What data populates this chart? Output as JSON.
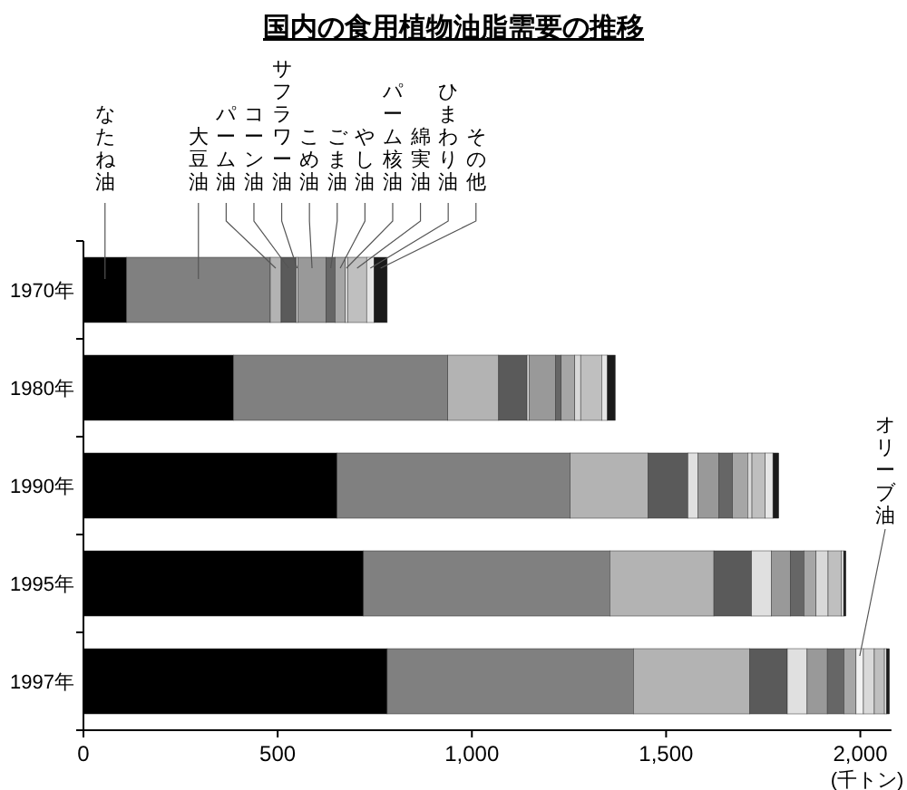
{
  "chart_data": {
    "type": "bar",
    "orientation": "horizontal",
    "stacked": true,
    "title": "国内の食用植物油脂需要の推移",
    "xlabel": "(千トン)",
    "categories": [
      "1970年",
      "1980年",
      "1990年",
      "1995年",
      "1997年"
    ],
    "xlim": [
      0,
      2080
    ],
    "xticks": [
      0,
      500,
      {
        "value": 1000,
        "label": "1,000"
      },
      {
        "value": 1500,
        "label": "1,500"
      },
      {
        "value": 2000,
        "label": "2,000"
      }
    ],
    "grid": false,
    "series": [
      {
        "name": "なたね油",
        "color": "#000000",
        "values": [
          111,
          386,
          653,
          721,
          782
        ]
      },
      {
        "name": "大豆油",
        "color": "#808080",
        "values": [
          370,
          552,
          600,
          634,
          634
        ]
      },
      {
        "name": "パーム油",
        "color": "#b3b3b3",
        "values": [
          28,
          131,
          201,
          268,
          299
        ]
      },
      {
        "name": "コーン油",
        "color": "#5a5a5a",
        "values": [
          39,
          73,
          102,
          97,
          97
        ]
      },
      {
        "name": "サフラワー油",
        "color": "#e0e0e0",
        "values": [
          4,
          5,
          26,
          51,
          51
        ]
      },
      {
        "name": "こめ油",
        "color": "#999999",
        "values": [
          73,
          68,
          54,
          49,
          52
        ]
      },
      {
        "name": "ごま油",
        "color": "#666666",
        "values": [
          23,
          15,
          35,
          35,
          43
        ]
      },
      {
        "name": "やし油",
        "color": "#a6a6a6",
        "values": [
          26,
          35,
          39,
          31,
          31
        ]
      },
      {
        "name": "オリーブ油",
        "color": "#f2f2f2",
        "values": [
          null,
          null,
          null,
          null,
          19
        ]
      },
      {
        "name": "パーム核油",
        "color": "#d9d9d9",
        "values": [
          6,
          15,
          11,
          31,
          28
        ]
      },
      {
        "name": "綿実油",
        "color": "#bfbfbf",
        "values": [
          49,
          54,
          34,
          34,
          26
        ]
      },
      {
        "name": "ひまわり油",
        "color": "#e6e6e6",
        "values": [
          19,
          15,
          20,
          6,
          5
        ]
      },
      {
        "name": "その他",
        "color": "#1a1a1a",
        "values": [
          34,
          20,
          15,
          6,
          8
        ]
      }
    ]
  }
}
